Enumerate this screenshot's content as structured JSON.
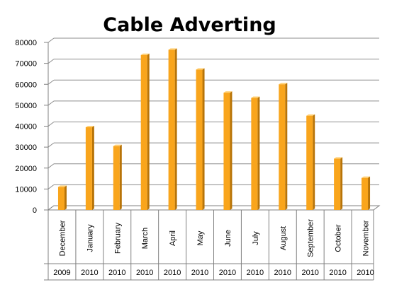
{
  "chart_data": {
    "type": "bar",
    "title": "Cable Adverting",
    "xlabel": "",
    "ylabel": "",
    "ylim": [
      0,
      80000
    ],
    "yticks": [
      0,
      10000,
      20000,
      30000,
      40000,
      50000,
      60000,
      70000,
      80000
    ],
    "grid": true,
    "legend": "none",
    "categories": [
      "December",
      "January",
      "February",
      "March",
      "April",
      "May",
      "June",
      "July",
      "August",
      "September",
      "October",
      "November"
    ],
    "years": [
      "2009",
      "2010",
      "2010",
      "2010",
      "2010",
      "2010",
      "2010",
      "2010",
      "2010",
      "2010",
      "2010",
      "2010"
    ],
    "values": [
      11000,
      39500,
      30500,
      74000,
      76500,
      67000,
      56000,
      53500,
      60000,
      45000,
      24500,
      15300
    ],
    "colors": {
      "bar_front": "#F9A51C",
      "bar_side": "#B87408",
      "bar_top": "#FFD27A",
      "gridline": "#8C8C8C",
      "axis": "#808080"
    }
  }
}
